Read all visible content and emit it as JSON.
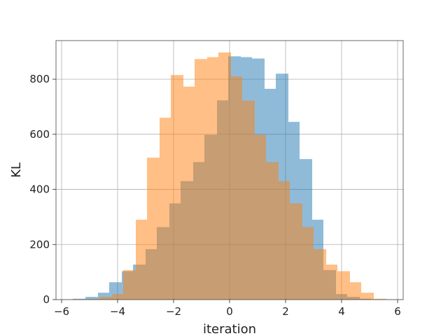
{
  "chart_data": {
    "type": "histogram",
    "xlabel": "iteration",
    "ylabel": "KL",
    "xlim": [
      -6.2,
      6.2
    ],
    "ylim": [
      0,
      940
    ],
    "grid": true,
    "x_ticks": [
      -6,
      -4,
      -2,
      0,
      2,
      4,
      6
    ],
    "y_ticks": [
      0,
      200,
      400,
      600,
      800
    ],
    "series": [
      {
        "color": "#1f77b4",
        "alpha": 0.5,
        "bins": [
          {
            "x0": -5.6,
            "x1": -5.15,
            "value": 3
          },
          {
            "x0": -5.15,
            "x1": -4.7,
            "value": 10
          },
          {
            "x0": -4.7,
            "x1": -4.3,
            "value": 25
          },
          {
            "x0": -4.3,
            "x1": -3.85,
            "value": 63
          },
          {
            "x0": -3.85,
            "x1": -3.45,
            "value": 103
          },
          {
            "x0": -3.45,
            "x1": -3.0,
            "value": 127
          },
          {
            "x0": -3.0,
            "x1": -2.6,
            "value": 183
          },
          {
            "x0": -2.6,
            "x1": -2.15,
            "value": 263
          },
          {
            "x0": -2.15,
            "x1": -1.75,
            "value": 349
          },
          {
            "x0": -1.75,
            "x1": -1.3,
            "value": 430
          },
          {
            "x0": -1.3,
            "x1": -0.9,
            "value": 499
          },
          {
            "x0": -0.9,
            "x1": -0.45,
            "value": 598
          },
          {
            "x0": -0.45,
            "x1": -0.05,
            "value": 723
          },
          {
            "x0": -0.05,
            "x1": 0.4,
            "value": 883
          },
          {
            "x0": 0.4,
            "x1": 0.8,
            "value": 880
          },
          {
            "x0": 0.8,
            "x1": 1.25,
            "value": 875
          },
          {
            "x0": 1.25,
            "x1": 1.65,
            "value": 765
          },
          {
            "x0": 1.65,
            "x1": 2.1,
            "value": 820
          },
          {
            "x0": 2.1,
            "x1": 2.5,
            "value": 645
          },
          {
            "x0": 2.5,
            "x1": 2.95,
            "value": 510
          },
          {
            "x0": 2.95,
            "x1": 3.35,
            "value": 290
          },
          {
            "x0": 3.35,
            "x1": 3.8,
            "value": 107
          },
          {
            "x0": 3.8,
            "x1": 4.2,
            "value": 20
          },
          {
            "x0": 4.2,
            "x1": 4.65,
            "value": 10
          },
          {
            "x0": 4.65,
            "x1": 5.05,
            "value": 3
          },
          {
            "x0": 5.05,
            "x1": 5.5,
            "value": 1
          }
        ]
      },
      {
        "color": "#ff7f0e",
        "alpha": 0.5,
        "bins": [
          {
            "x0": -5.5,
            "x1": -5.05,
            "value": 1
          },
          {
            "x0": -5.05,
            "x1": -4.65,
            "value": 3
          },
          {
            "x0": -4.65,
            "x1": -4.2,
            "value": 10
          },
          {
            "x0": -4.2,
            "x1": -3.8,
            "value": 20
          },
          {
            "x0": -3.8,
            "x1": -3.35,
            "value": 107
          },
          {
            "x0": -3.35,
            "x1": -2.95,
            "value": 290
          },
          {
            "x0": -2.95,
            "x1": -2.5,
            "value": 515
          },
          {
            "x0": -2.5,
            "x1": -2.1,
            "value": 660
          },
          {
            "x0": -2.1,
            "x1": -1.65,
            "value": 815
          },
          {
            "x0": -1.65,
            "x1": -1.25,
            "value": 773
          },
          {
            "x0": -1.25,
            "x1": -0.8,
            "value": 873
          },
          {
            "x0": -0.8,
            "x1": -0.4,
            "value": 880
          },
          {
            "x0": -0.4,
            "x1": 0.05,
            "value": 897
          },
          {
            "x0": 0.05,
            "x1": 0.45,
            "value": 810
          },
          {
            "x0": 0.45,
            "x1": 0.9,
            "value": 722
          },
          {
            "x0": 0.9,
            "x1": 1.3,
            "value": 598
          },
          {
            "x0": 1.3,
            "x1": 1.75,
            "value": 499
          },
          {
            "x0": 1.75,
            "x1": 2.15,
            "value": 430
          },
          {
            "x0": 2.15,
            "x1": 2.6,
            "value": 349
          },
          {
            "x0": 2.6,
            "x1": 3.0,
            "value": 263
          },
          {
            "x0": 3.0,
            "x1": 3.45,
            "value": 183
          },
          {
            "x0": 3.45,
            "x1": 3.85,
            "value": 127
          },
          {
            "x0": 3.85,
            "x1": 4.3,
            "value": 103
          },
          {
            "x0": 4.3,
            "x1": 4.7,
            "value": 63
          },
          {
            "x0": 4.7,
            "x1": 5.15,
            "value": 25
          },
          {
            "x0": 5.15,
            "x1": 5.6,
            "value": 3
          }
        ]
      }
    ]
  }
}
